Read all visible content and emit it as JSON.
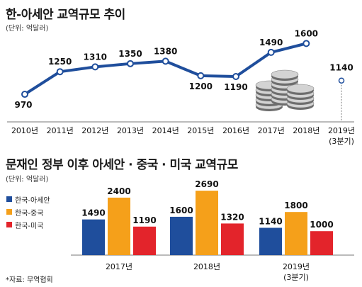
{
  "source_note": "*자료: 무역협회",
  "chart_data": [
    {
      "type": "line",
      "title": "한-아세안 교역규모 추이",
      "unit_label": "(단위: 억달러)",
      "x": [
        "2010년",
        "2011년",
        "2012년",
        "2013년",
        "2014년",
        "2015년",
        "2016년",
        "2017년",
        "2018년",
        "2019년"
      ],
      "x_sub": [
        "",
        "",
        "",
        "",
        "",
        "",
        "",
        "",
        "",
        "(3분기)"
      ],
      "values": [
        970,
        1250,
        1310,
        1350,
        1380,
        1200,
        1190,
        1490,
        1600,
        1140
      ],
      "value_labels": [
        "970",
        "1250",
        "1310",
        "1350",
        "1380",
        "1200",
        "1190",
        "1490",
        "1600",
        "1140"
      ],
      "connected_points": 9,
      "color": "#1f4e9c",
      "ylim": [
        900,
        1700
      ],
      "decoration": "coin-stack"
    },
    {
      "type": "bar",
      "title": "문재인 정부 이후 아세안 · 중국 · 미국 교역규모",
      "unit_label": "(단위: 억달러)",
      "categories": [
        "2017년",
        "2018년",
        "2019년"
      ],
      "category_sub": [
        "",
        "",
        "(3분기)"
      ],
      "series": [
        {
          "name": "한국-아세안",
          "color": "#1f4e9c",
          "values": [
            1490,
            1600,
            1140
          ],
          "labels": [
            "1490",
            "1600",
            "1140"
          ]
        },
        {
          "name": "한국-중국",
          "color": "#f5a01a",
          "values": [
            2400,
            2690,
            1800
          ],
          "labels": [
            "2400",
            "2690",
            "1800"
          ]
        },
        {
          "name": "한국-미국",
          "color": "#e3242b",
          "values": [
            1190,
            1320,
            1000
          ],
          "labels": [
            "1190",
            "1320",
            "1000"
          ]
        }
      ],
      "ylim": [
        0,
        2900
      ],
      "legend_position": "left"
    }
  ]
}
